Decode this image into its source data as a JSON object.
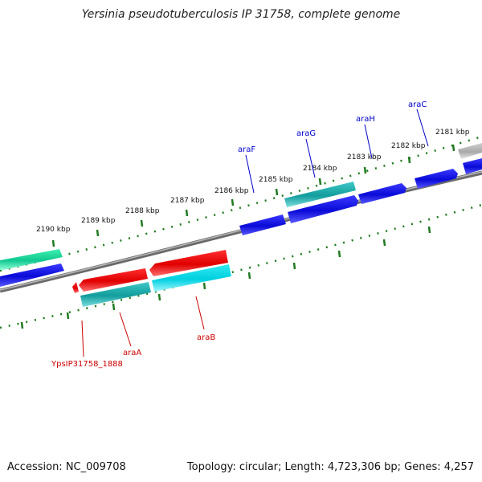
{
  "title": "Yersinia pseudotuberculosis IP 31758, complete genome",
  "footer": {
    "accession": "Accession: NC_009708",
    "summary": "Topology: circular; Length: 4,723,306 bp; Genes: 4,257"
  },
  "colors": {
    "backbone": "#8a8a8a",
    "tick": "#1f7a1f",
    "blue_gene": "#1010e0",
    "cyan_gene": "#00cccc",
    "teal_gene": "#1fb0b0",
    "red_gene": "#ee1010",
    "green_gene": "#20e0a0",
    "gray_gene": "#b0b0b0",
    "forward_label": "#0000cc",
    "reverse_label": "#cc0000"
  },
  "ticks": [
    {
      "label": "2181 kbp"
    },
    {
      "label": "2182 kbp"
    },
    {
      "label": "2183 kbp"
    },
    {
      "label": "2184 kbp"
    },
    {
      "label": "2185 kbp"
    },
    {
      "label": "2186 kbp"
    },
    {
      "label": "2187 kbp"
    },
    {
      "label": "2188 kbp"
    },
    {
      "label": "2189 kbp"
    },
    {
      "label": "2190 kbp"
    }
  ],
  "genes": {
    "forward": [
      {
        "label": "araC",
        "color": "blue"
      },
      {
        "label": "araH",
        "color": "blue"
      },
      {
        "label": "araG",
        "color": "teal"
      },
      {
        "label": "araF",
        "color": "blue"
      }
    ],
    "reverse": [
      {
        "label": "araB",
        "color": "red"
      },
      {
        "label": "araA",
        "color": "red"
      },
      {
        "label": "YpsIP31758_1888",
        "color": "red"
      }
    ]
  }
}
